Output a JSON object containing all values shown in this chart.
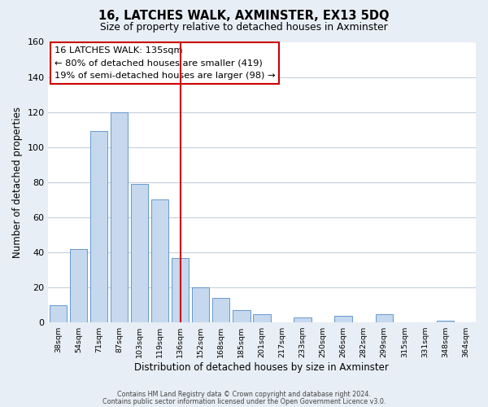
{
  "title": "16, LATCHES WALK, AXMINSTER, EX13 5DQ",
  "subtitle": "Size of property relative to detached houses in Axminster",
  "xlabel": "Distribution of detached houses by size in Axminster",
  "ylabel": "Number of detached properties",
  "bar_labels": [
    "38sqm",
    "54sqm",
    "71sqm",
    "87sqm",
    "103sqm",
    "119sqm",
    "136sqm",
    "152sqm",
    "168sqm",
    "185sqm",
    "201sqm",
    "217sqm",
    "233sqm",
    "250sqm",
    "266sqm",
    "282sqm",
    "299sqm",
    "315sqm",
    "331sqm",
    "348sqm",
    "364sqm"
  ],
  "bar_heights": [
    10,
    42,
    109,
    120,
    79,
    70,
    37,
    20,
    14,
    7,
    5,
    0,
    3,
    0,
    4,
    0,
    5,
    0,
    0,
    1,
    0
  ],
  "bar_color": "#c5d8ee",
  "bar_edge_color": "#6699cc",
  "highlight_bar_index": 6,
  "vline_x_index": 6,
  "vline_color": "#cc0000",
  "annotation_lines": [
    "16 LATCHES WALK: 135sqm",
    "← 80% of detached houses are smaller (419)",
    "19% of semi-detached houses are larger (98) →"
  ],
  "ylim": [
    0,
    160
  ],
  "yticks": [
    0,
    20,
    40,
    60,
    80,
    100,
    120,
    140,
    160
  ],
  "footer_line1": "Contains HM Land Registry data © Crown copyright and database right 2024.",
  "footer_line2": "Contains public sector information licensed under the Open Government Licence v3.0.",
  "background_color": "#e8eef5",
  "plot_background_color": "#ffffff",
  "grid_color": "#c5d0dc"
}
